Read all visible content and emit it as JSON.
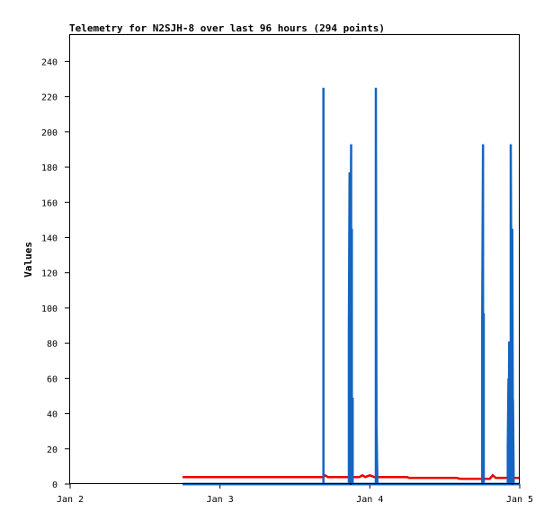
{
  "chart_data": {
    "type": "line",
    "title": "Telemetry for N2SJH-8 over last 96 hours (294 points)",
    "xlabel": "",
    "ylabel": "Values",
    "xlim": [
      0,
      3
    ],
    "ylim": [
      0,
      255
    ],
    "y_ticks": [
      0,
      20,
      40,
      60,
      80,
      100,
      120,
      140,
      160,
      180,
      200,
      220,
      240
    ],
    "x_ticks": [
      {
        "value": 0,
        "label": "Jan 2"
      },
      {
        "value": 1,
        "label": "Jan 3"
      },
      {
        "value": 2,
        "label": "Jan 4"
      },
      {
        "value": 3,
        "label": "Jan 5"
      }
    ],
    "grid": false,
    "legend": "none",
    "series": [
      {
        "color": "#000000",
        "x": [
          0.75,
          3.0
        ],
        "y": [
          0,
          0
        ]
      },
      {
        "color": "#ee0000",
        "x": [
          0.75,
          1.25,
          1.69,
          1.7,
          1.72,
          1.85,
          1.93,
          1.95,
          1.97,
          2.0,
          2.03,
          2.05,
          2.08,
          2.25,
          2.26,
          2.58,
          2.6,
          2.8,
          2.82,
          2.84,
          2.9,
          3.0
        ],
        "y": [
          4,
          4,
          4,
          5,
          4,
          4,
          4,
          5,
          4,
          5,
          4,
          4,
          4,
          4,
          3.5,
          3.5,
          3,
          3,
          5,
          3.5,
          3.5,
          3.5
        ]
      },
      {
        "color": "#1565c0",
        "x": [
          0.75,
          1.69,
          1.69,
          1.69,
          1.86,
          1.86,
          1.865,
          1.865,
          1.875,
          1.875,
          1.88,
          1.88,
          1.885,
          1.885,
          1.89,
          1.89,
          2.04,
          2.04,
          2.045,
          2.045,
          2.05,
          2.05,
          2.75,
          2.75,
          2.755,
          2.755,
          2.76,
          2.76,
          2.92,
          2.92,
          2.925,
          2.925,
          2.93,
          2.93,
          2.935,
          2.935,
          2.94,
          2.94,
          2.95,
          2.95,
          2.955,
          2.955,
          2.96,
          2.96,
          2.965,
          2.965,
          3.0
        ],
        "y": [
          0,
          0,
          225,
          0,
          0,
          89,
          177,
          0,
          193,
          0,
          145,
          0,
          49,
          0,
          0,
          0,
          0,
          225,
          0,
          32,
          0,
          0,
          0,
          97,
          193,
          0,
          97,
          0,
          0,
          21,
          60,
          0,
          81,
          0,
          40,
          0,
          0,
          193,
          0,
          145,
          0,
          48,
          0,
          0,
          0,
          0,
          0
        ]
      }
    ]
  }
}
